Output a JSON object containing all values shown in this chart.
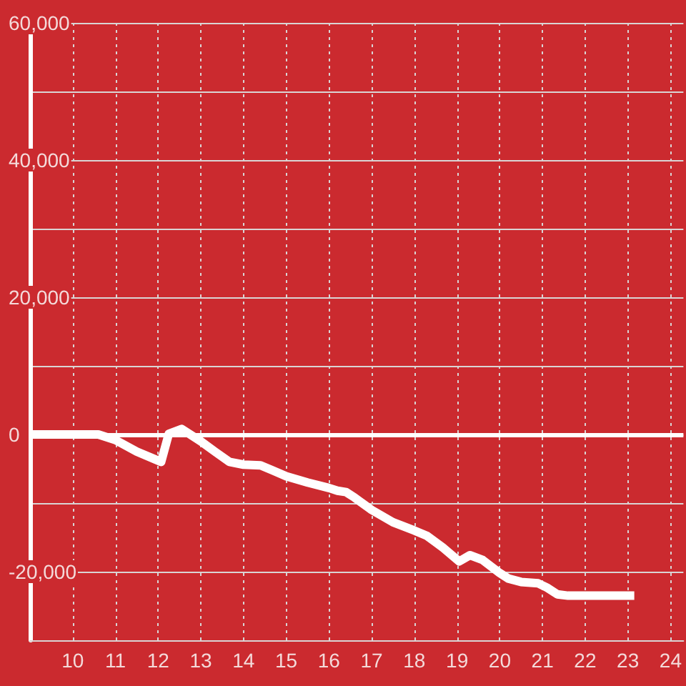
{
  "chart_data": {
    "type": "line",
    "x": [
      9,
      10.6,
      11,
      11.5,
      12.07,
      12.25,
      12.55,
      13,
      13.33,
      13.67,
      14,
      14.4,
      14.67,
      15,
      15.5,
      16,
      16.2,
      16.4,
      16.6,
      17,
      17.5,
      18,
      18.3,
      18.67,
      19.05,
      19.3,
      19.6,
      20,
      20.2,
      20.5,
      20.9,
      21.1,
      21.35,
      21.6,
      23.15
    ],
    "series": [
      {
        "color": "#ffffff",
        "values": [
          0,
          0,
          -800,
          -2500,
          -4000,
          100,
          800,
          -1000,
          -2500,
          -4000,
          -4400,
          -4500,
          -5200,
          -6100,
          -7000,
          -7800,
          -8200,
          -8400,
          -9200,
          -11000,
          -12800,
          -14000,
          -14800,
          -16500,
          -18500,
          -17600,
          -18300,
          -20200,
          -21000,
          -21500,
          -21700,
          -22300,
          -23300,
          -23500,
          -23500
        ]
      }
    ],
    "xlim": [
      9,
      24.3
    ],
    "xticks": [
      10,
      11,
      12,
      13,
      14,
      15,
      16,
      17,
      18,
      19,
      20,
      21,
      22,
      23,
      24
    ],
    "ylim": [
      -30000,
      60000
    ],
    "yticks": [
      {
        "value": 60000,
        "label": "60,000"
      },
      {
        "value": 50000,
        "label": null
      },
      {
        "value": 40000,
        "label": "40,000"
      },
      {
        "value": 30000,
        "label": null
      },
      {
        "value": 20000,
        "label": "20,000"
      },
      {
        "value": 10000,
        "label": null
      },
      0,
      {
        "value": -10000,
        "label": null
      },
      {
        "value": -20000,
        "label": "-20,000"
      }
    ],
    "grid": true,
    "ref_lines": [
      {
        "axis": "y",
        "value": 0,
        "color": "#ffffff"
      }
    ]
  }
}
